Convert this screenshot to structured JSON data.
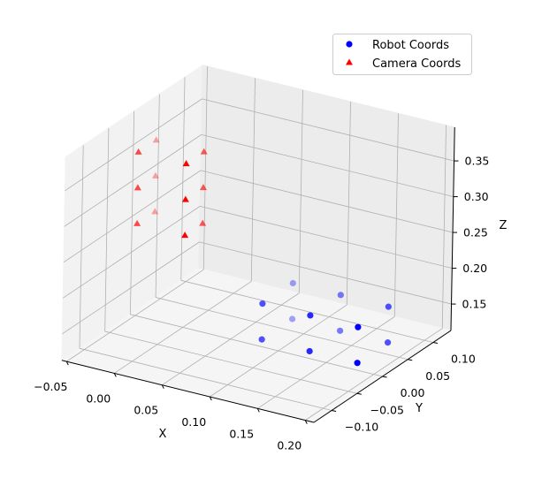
{
  "chart_data": {
    "type": "scatter3d",
    "xlabel": "X",
    "ylabel": "Y",
    "zlabel": "Z",
    "xlim": [
      -0.055,
      0.209
    ],
    "ylim": [
      -0.135,
      0.135
    ],
    "zlim": [
      0.113,
      0.397
    ],
    "xticks": [
      "−0.05",
      "0.00",
      "0.05",
      "0.10",
      "0.15",
      "0.20"
    ],
    "xtick_values": [
      -0.05,
      0.0,
      0.05,
      0.1,
      0.15,
      0.2
    ],
    "yticks": [
      "−0.10",
      "−0.05",
      "0.00",
      "0.05",
      "0.10"
    ],
    "ytick_values": [
      -0.1,
      -0.05,
      0.0,
      0.05,
      0.1
    ],
    "zticks": [
      "0.15",
      "0.20",
      "0.25",
      "0.30",
      "0.35"
    ],
    "ztick_values": [
      0.15,
      0.2,
      0.25,
      0.3,
      0.35
    ],
    "grid": true,
    "legend_position": "top-right",
    "series": [
      {
        "name": "Robot Coords",
        "marker": "circle",
        "color": "#0000ff",
        "points": [
          [
            0.08,
            0.005,
            0.12
          ],
          [
            0.13,
            0.005,
            0.12
          ],
          [
            0.18,
            0.005,
            0.12
          ],
          [
            0.08,
            0.065,
            0.12
          ],
          [
            0.13,
            0.065,
            0.12
          ],
          [
            0.18,
            0.065,
            0.12
          ],
          [
            0.08,
            0.005,
            0.17
          ],
          [
            0.13,
            0.005,
            0.17
          ],
          [
            0.18,
            0.005,
            0.17
          ],
          [
            0.08,
            0.065,
            0.17
          ],
          [
            0.13,
            0.065,
            0.17
          ],
          [
            0.18,
            0.065,
            0.17
          ]
        ]
      },
      {
        "name": "Camera Coords",
        "marker": "triangle",
        "color": "#ff0000",
        "points": [
          [
            -0.035,
            -0.028,
            0.26
          ],
          [
            -0.035,
            -0.028,
            0.31
          ],
          [
            -0.035,
            -0.028,
            0.36
          ],
          [
            -0.035,
            0.007,
            0.26
          ],
          [
            -0.035,
            0.007,
            0.31
          ],
          [
            -0.035,
            0.007,
            0.36
          ],
          [
            0.015,
            -0.028,
            0.26
          ],
          [
            0.015,
            -0.028,
            0.31
          ],
          [
            0.015,
            -0.028,
            0.36
          ],
          [
            0.015,
            0.007,
            0.26
          ],
          [
            0.015,
            0.007,
            0.31
          ],
          [
            0.015,
            0.007,
            0.36
          ]
        ]
      }
    ]
  }
}
